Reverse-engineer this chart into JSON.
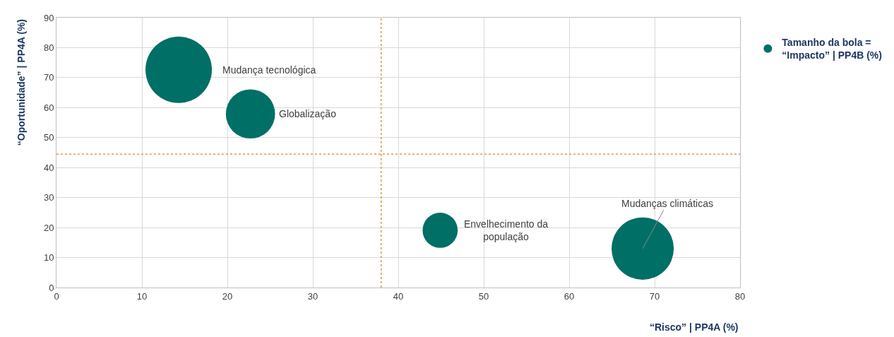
{
  "chart_data": {
    "type": "bubble",
    "xlabel": "“Risco” | PP4A (%)",
    "ylabel": "“Oportunidade” | PP4A (%)",
    "x": [
      14.3,
      22.7,
      44.9,
      68.6
    ],
    "series": [
      {
        "name": "Tamanho da bola = “Impacto” | PP4B (%)",
        "color": "#006f66",
        "values": [
          72.6,
          57.9,
          19.1,
          13.0
        ],
        "sizes": [
          1,
          0.55,
          0.28,
          0.88
        ]
      }
    ],
    "annotations": [
      "Mudança tecnológica",
      {
        "text": "Globalização",
        "x": 22.7,
        "y": 57.9
      },
      {
        "text": "Envelhecimento da\npopulação",
        "x": 44.9,
        "y": 19.1
      },
      {
        "text": "Mudanças climáticas",
        "x": 68.6,
        "y": 13.0
      }
    ],
    "ref_lines": [
      {
        "axis": "x",
        "value": 38,
        "color": "#e8822a",
        "line_style": "dotted"
      },
      {
        "axis": "y",
        "value": 44.5,
        "color": "#e8822a",
        "line_style": "dotted"
      }
    ],
    "xlim": [
      0,
      80
    ],
    "xticks": [
      0,
      10,
      20,
      30,
      40,
      50,
      60,
      70,
      80
    ],
    "ylim": [
      0,
      90
    ],
    "yticks": [
      0,
      10,
      20,
      30,
      40,
      50,
      60,
      70,
      80,
      90
    ],
    "grid": true,
    "legend": "top right",
    "marker": "circle"
  }
}
